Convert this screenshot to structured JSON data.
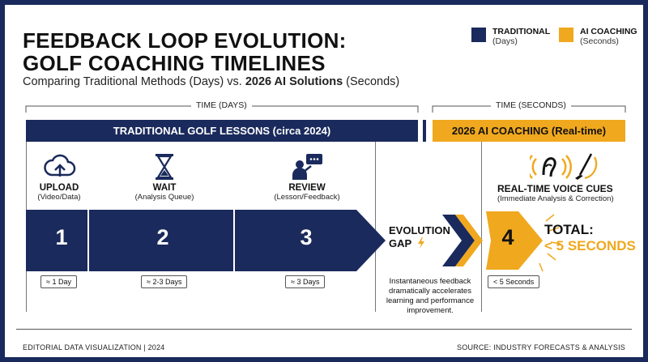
{
  "title_line1": "FEEDBACK LOOP EVOLUTION:",
  "title_line2": "GOLF COACHING TIMELINES",
  "subtitle_pre": "Comparing Traditional Methods (Days) vs.",
  "subtitle_bold": "2026 AI Solutions",
  "subtitle_post": "(Seconds)",
  "legend": {
    "traditional": {
      "name": "TRADITIONAL",
      "unit": "(Days)",
      "color": "#1a2a5c"
    },
    "ai": {
      "name": "AI COACHING",
      "unit": "(Seconds)",
      "color": "#f0a81e"
    }
  },
  "time_days": "TIME (DAYS)",
  "time_seconds": "TIME (SECONDS)",
  "traditional_header": "TRADITIONAL GOLF LESSONS (circa 2024)",
  "ai_header": "2026 AI COACHING (Real-time)",
  "steps": [
    {
      "icon": "cloud-upload-icon",
      "name": "UPLOAD",
      "sub": "(Video/Data)",
      "num": "1",
      "dur": "≈ 1 Day"
    },
    {
      "icon": "hourglass-icon",
      "name": "WAIT",
      "sub": "(Analysis Queue)",
      "num": "2",
      "dur": "≈ 2-3 Days"
    },
    {
      "icon": "review-chat-icon",
      "name": "REVIEW",
      "sub": "(Lesson/Feedback)",
      "num": "3",
      "dur": "≈ 3 Days"
    }
  ],
  "gap": {
    "line1": "EVOLUTION",
    "line2": "GAP",
    "note": "Instantaneous feedback dramatically accelerates learning and performance improvement."
  },
  "ai_step": {
    "name": "REAL-TIME VOICE CUES",
    "sub": "(Immediate Analysis & Correction)",
    "num": "4",
    "dur": "< 5 Seconds"
  },
  "total": {
    "line1": "TOTAL:",
    "line2": "< 5 SECONDS"
  },
  "footer_left": "EDITORIAL DATA VISUALIZATION  | 2024",
  "footer_right": "SOURCE: INDUSTRY FORECASTS & ANALYSIS"
}
